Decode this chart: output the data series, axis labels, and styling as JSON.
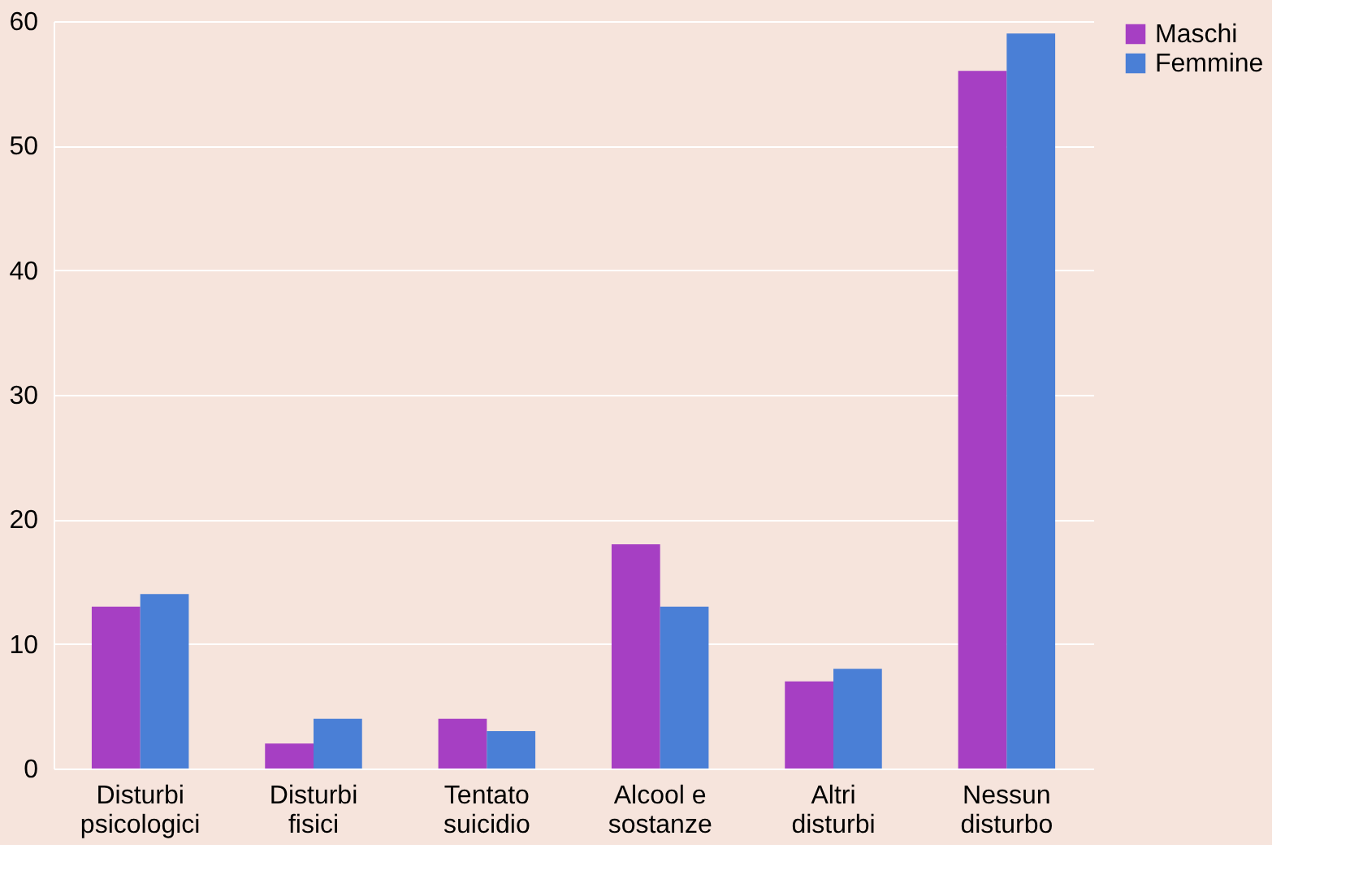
{
  "chart_data": {
    "type": "bar",
    "categories": [
      "Disturbi\npsicologici",
      "Disturbi\nfisici",
      "Tentato\nsuicidio",
      "Alcool e\nsostanze",
      "Altri\ndisturbi",
      "Nessun\ndisturbo"
    ],
    "series": [
      {
        "name": "Maschi",
        "color": "#a63fc3",
        "values": [
          13,
          2,
          4,
          18,
          7,
          56
        ]
      },
      {
        "name": "Femmine",
        "color": "#4a7fd6",
        "values": [
          14,
          4,
          3,
          13,
          8,
          59
        ]
      }
    ],
    "ylim": [
      0,
      60
    ],
    "yticks": [
      0,
      10,
      20,
      30,
      40,
      50,
      60
    ],
    "grid": "y",
    "legend": "right"
  }
}
